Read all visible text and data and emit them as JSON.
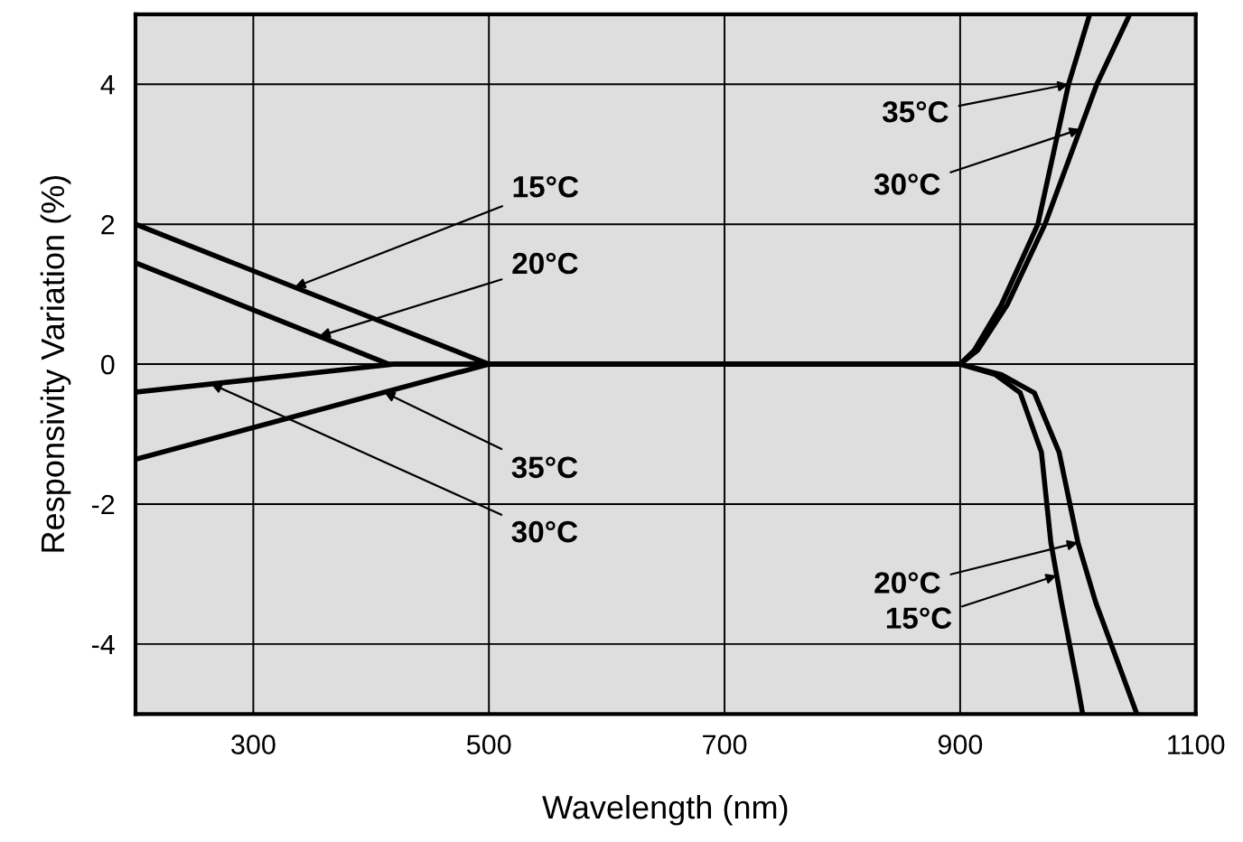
{
  "chart_data": {
    "type": "line",
    "xlabel": "Wavelength (nm)",
    "ylabel": "Responsivity Variation (%)",
    "series": [
      {
        "color": "#000000",
        "x": [
          200,
          500,
          900,
          930,
          951,
          969,
          977,
          986,
          1000,
          1004
        ],
        "values": [
          2.0,
          0,
          0,
          -0.15,
          -0.41,
          -1.26,
          -2.55,
          -3.4,
          -4.62,
          -5
        ]
      },
      {
        "color": "#000000",
        "x": [
          200,
          415,
          900,
          935,
          963,
          984,
          1000,
          1015,
          1050
        ],
        "values": [
          1.45,
          0,
          0,
          -0.15,
          -0.41,
          -1.26,
          -2.55,
          -3.4,
          -5
        ]
      },
      {
        "color": "#000000",
        "x": [
          200,
          420,
          900,
          915,
          940,
          972,
          1016,
          1044
        ],
        "values": [
          -0.4,
          0,
          0,
          0.2,
          0.85,
          2,
          4,
          5
        ]
      },
      {
        "color": "#000000",
        "x": [
          200,
          500,
          900,
          912,
          935,
          966,
          992,
          1010
        ],
        "values": [
          -1.36,
          0,
          0,
          0.2,
          0.85,
          2,
          4,
          5
        ]
      }
    ],
    "annotations": [
      {
        "text": "15°C",
        "x": 335,
        "y": 1.1
      },
      {
        "text": "20°C",
        "x": 356,
        "y": 0.4
      },
      {
        "text": "35°C",
        "x": 411,
        "y": -0.4
      },
      {
        "text": "30°C",
        "x": 264,
        "y": -0.28
      },
      {
        "text": "35°C",
        "x": 992,
        "y": 4
      },
      {
        "text": "30°C",
        "x": 1002,
        "y": 3.36
      },
      {
        "text": "20°C",
        "x": 1000,
        "y": -2.55
      },
      {
        "text": "15°C",
        "x": 982,
        "y": -3.02
      }
    ],
    "xlim": [
      200,
      1100
    ],
    "ylim": [
      -5,
      5
    ],
    "xticks": [
      300,
      500,
      700,
      900,
      1100
    ],
    "yticks": [
      -4,
      -2,
      0,
      2,
      4
    ],
    "grid": true,
    "marker": "none",
    "line_style": "solid"
  }
}
